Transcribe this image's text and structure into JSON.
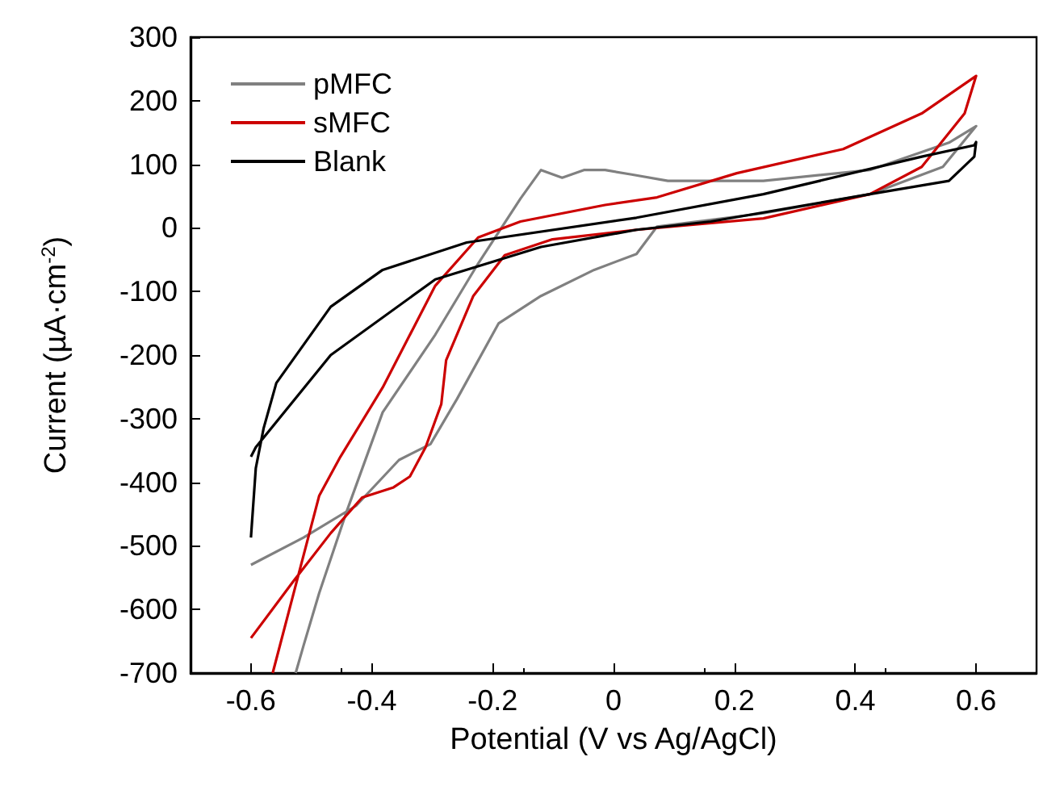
{
  "chart_data": {
    "type": "line",
    "xlabel": "Potential (V vs Ag/AgCl)",
    "ylabel": "Current (µA·cm$^{-2}$)",
    "xlim": [
      -0.7,
      0.7
    ],
    "xticks": [
      -0.6,
      -0.4,
      -0.2,
      0,
      0.2,
      0.4,
      0.6
    ],
    "ylim": [
      -700,
      300
    ],
    "yticks": [
      -700,
      -600,
      -500,
      -400,
      -300,
      -200,
      -100,
      0,
      100,
      200,
      300
    ],
    "grid": false,
    "legend": "top left",
    "marker": "none",
    "line_style": "solid",
    "series": [
      {
        "name": "pMFC",
        "color": "#808080",
        "x": [
          -0.6,
          -0.513,
          -0.426,
          -0.355,
          -0.303,
          -0.259,
          -0.19,
          -0.12,
          -0.032,
          0.038,
          0.072,
          0.248,
          0.424,
          0.545,
          0.6,
          0.555,
          0.424,
          0.248,
          0.09,
          0.03,
          -0.014,
          -0.049,
          -0.085,
          -0.12,
          -0.154,
          -0.224,
          -0.295,
          -0.382,
          -0.442,
          -0.487,
          -0.513,
          -0.526
        ],
        "values": [
          -530,
          -487,
          -437,
          -365,
          -340,
          -269,
          -150,
          -107,
          -66,
          -41,
          2,
          23,
          53,
          96,
          160,
          134,
          91,
          74,
          74,
          84,
          91,
          91,
          79,
          91,
          46,
          -56,
          -168,
          -290,
          -447,
          -574,
          -657,
          -700
        ]
      },
      {
        "name": "sMFC",
        "color": "#cc0000",
        "x": [
          -0.6,
          -0.53,
          -0.468,
          -0.416,
          -0.364,
          -0.337,
          -0.311,
          -0.285,
          -0.277,
          -0.232,
          -0.18,
          -0.101,
          0.038,
          0.248,
          0.424,
          0.51,
          0.581,
          0.6,
          0.51,
          0.38,
          0.204,
          0.072,
          -0.014,
          -0.154,
          -0.224,
          -0.295,
          -0.382,
          -0.452,
          -0.487,
          -0.564
        ],
        "values": [
          -645,
          -556,
          -480,
          -424,
          -408,
          -391,
          -345,
          -277,
          -208,
          -107,
          -43,
          -18,
          -3,
          15,
          53,
          96,
          180,
          239,
          180,
          124,
          86,
          48,
          36,
          10,
          -15,
          -91,
          -251,
          -360,
          -421,
          -700
        ]
      },
      {
        "name": "Blank",
        "color": "#000000",
        "x": [
          -0.6,
          -0.592,
          -0.579,
          -0.558,
          -0.468,
          -0.382,
          -0.243,
          0.038,
          0.248,
          0.51,
          0.597,
          0.6,
          0.597,
          0.555,
          0.424,
          0.161,
          0.038,
          -0.12,
          -0.295,
          -0.468,
          -0.592,
          -0.6
        ],
        "values": [
          -487,
          -378,
          -315,
          -244,
          -124,
          -66,
          -23,
          16,
          53,
          112,
          130,
          135,
          112,
          74,
          53,
          10,
          -3,
          -30,
          -81,
          -200,
          -345,
          -360
        ]
      }
    ]
  }
}
